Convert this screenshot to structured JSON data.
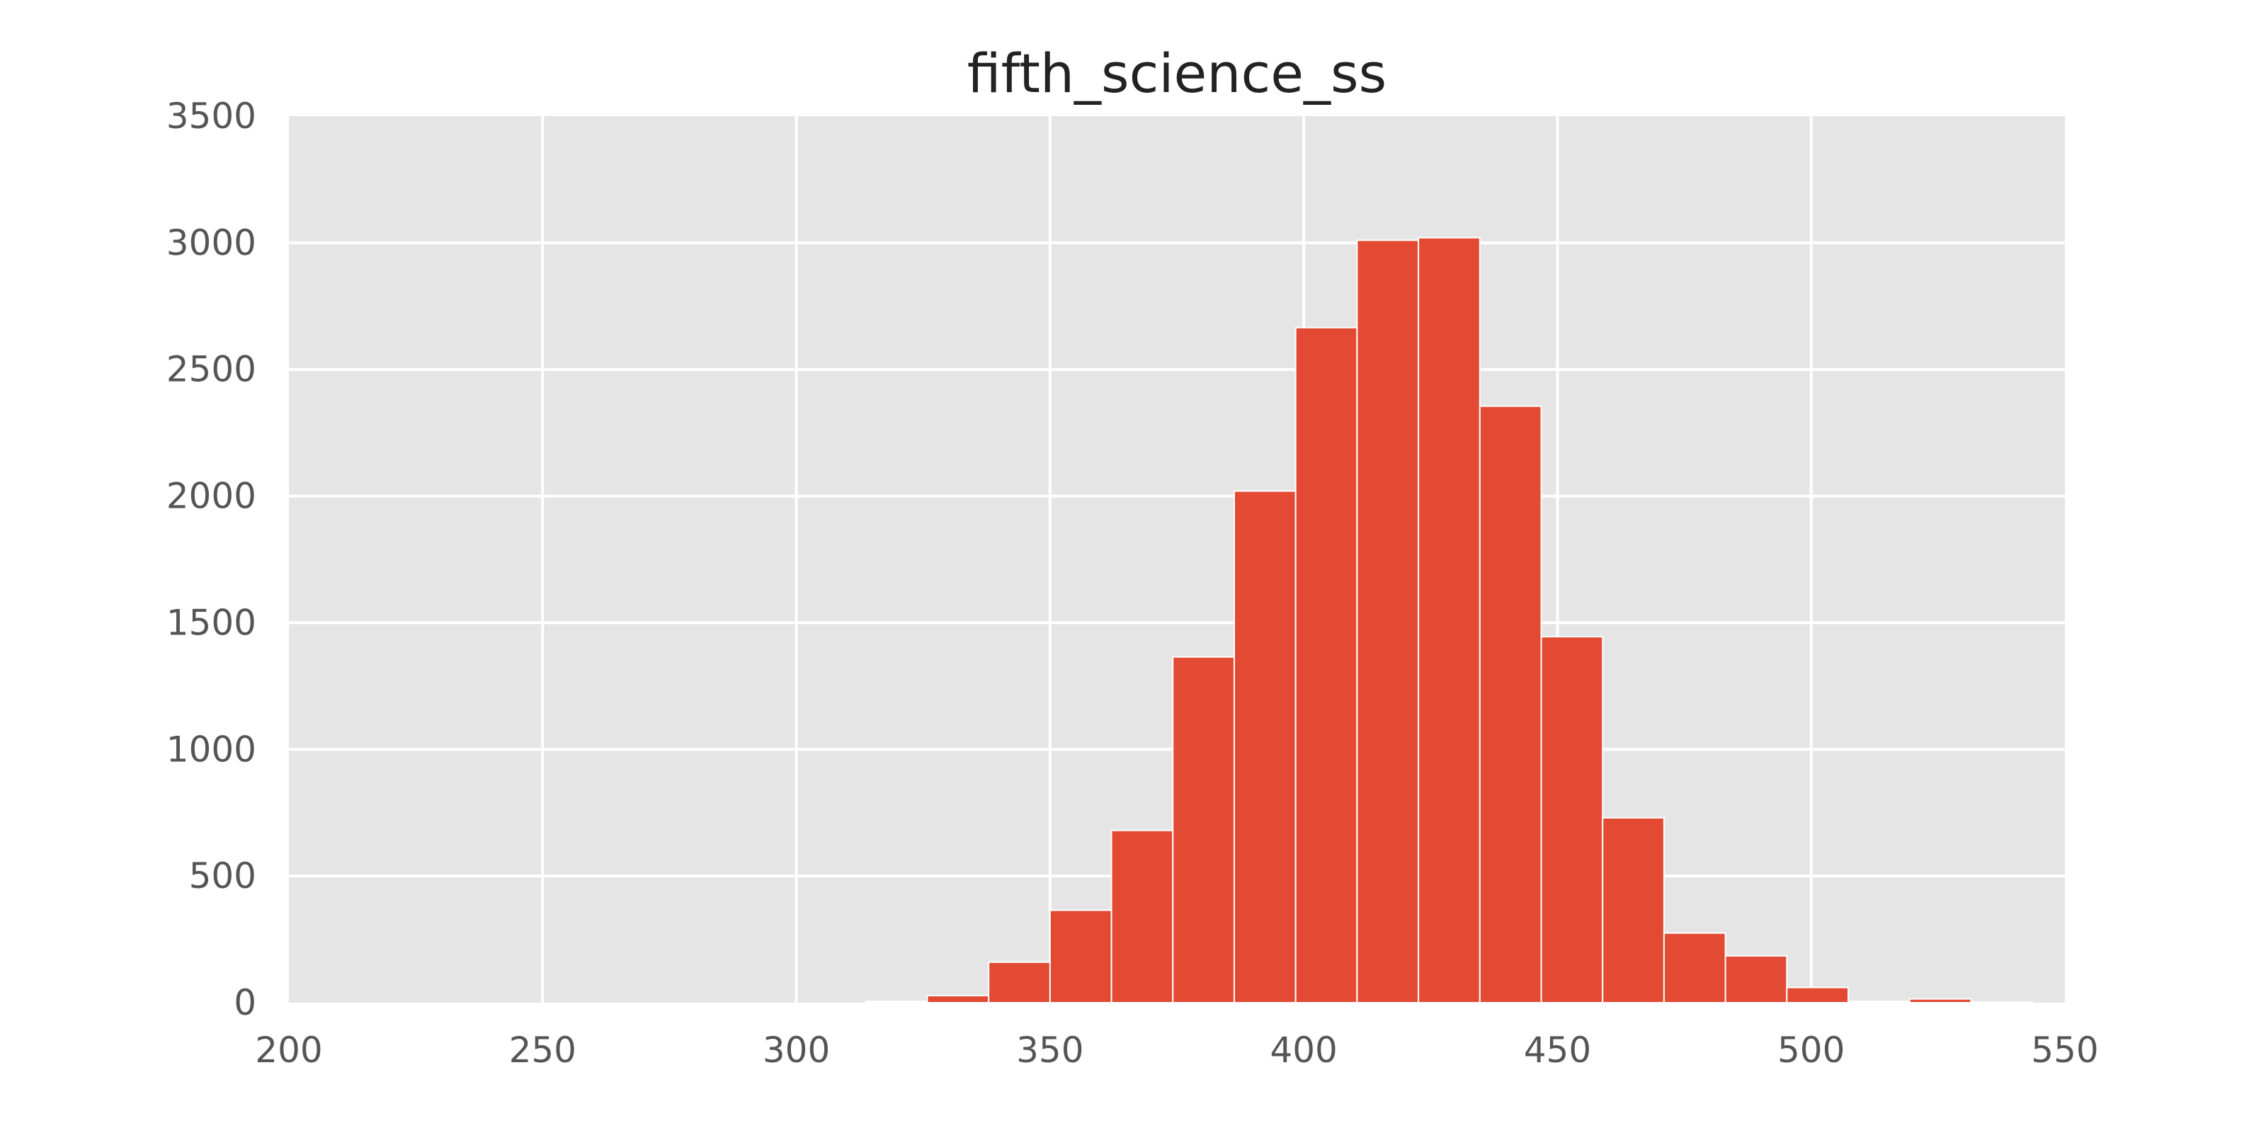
{
  "chart_data": {
    "type": "bar",
    "title": "fifth_science_ss",
    "xlabel": "",
    "ylabel": "",
    "xlim": [
      200,
      550
    ],
    "ylim": [
      0,
      3500
    ],
    "xticks": [
      200,
      250,
      300,
      350,
      400,
      450,
      500,
      550
    ],
    "yticks": [
      0,
      500,
      1000,
      1500,
      2000,
      2500,
      3000,
      3500
    ],
    "grid": true,
    "bar_color": "#E24A33",
    "plot_background": "#E5E5E5",
    "grid_color": "#FFFFFF",
    "bins": [
      {
        "x0": 313.7,
        "x1": 325.8,
        "count": 5
      },
      {
        "x0": 325.8,
        "x1": 337.9,
        "count": 28
      },
      {
        "x0": 337.9,
        "x1": 350.0,
        "count": 160
      },
      {
        "x0": 350.0,
        "x1": 362.1,
        "count": 365
      },
      {
        "x0": 362.1,
        "x1": 374.2,
        "count": 680
      },
      {
        "x0": 374.2,
        "x1": 386.3,
        "count": 1365
      },
      {
        "x0": 386.3,
        "x1": 398.4,
        "count": 2020
      },
      {
        "x0": 398.4,
        "x1": 410.5,
        "count": 2665
      },
      {
        "x0": 410.5,
        "x1": 422.6,
        "count": 3010
      },
      {
        "x0": 422.6,
        "x1": 434.7,
        "count": 3020
      },
      {
        "x0": 434.7,
        "x1": 446.8,
        "count": 2355
      },
      {
        "x0": 446.8,
        "x1": 458.9,
        "count": 1445
      },
      {
        "x0": 458.9,
        "x1": 471.0,
        "count": 730
      },
      {
        "x0": 471.0,
        "x1": 483.1,
        "count": 275
      },
      {
        "x0": 483.1,
        "x1": 495.2,
        "count": 185
      },
      {
        "x0": 495.2,
        "x1": 507.3,
        "count": 60
      },
      {
        "x0": 507.3,
        "x1": 519.4,
        "count": 5
      },
      {
        "x0": 519.4,
        "x1": 531.5,
        "count": 15
      },
      {
        "x0": 531.5,
        "x1": 543.6,
        "count": 2
      }
    ]
  }
}
